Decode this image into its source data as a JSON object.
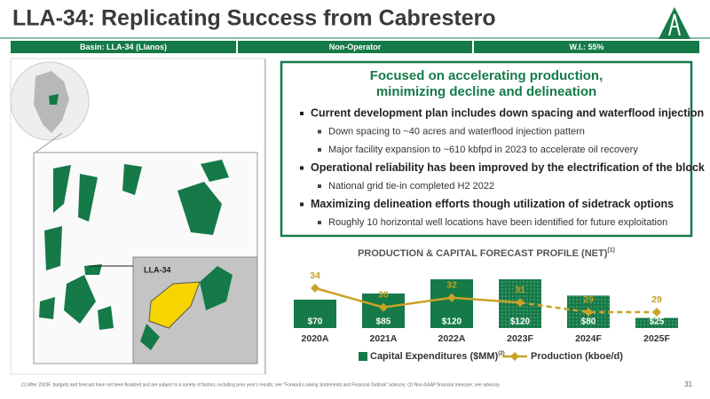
{
  "header": {
    "title": "LLA-34: Replicating Success from Cabrestero",
    "info_bar": [
      "Basin: LLA-34 (Llanos)",
      "Non-Operator",
      "W.I.: 55%"
    ]
  },
  "map": {
    "label": "LLA-34"
  },
  "focus": {
    "heading_lines": [
      "Focused on accelerating production,",
      "minimizing decline and delineation"
    ],
    "bullets": [
      {
        "level": 1,
        "text": "Current development plan includes down spacing and waterflood injection"
      },
      {
        "level": 2,
        "text": "Down spacing to ~40 acres and waterflood injection pattern"
      },
      {
        "level": 2,
        "text": "Major facility expansion to ~610 kbfpd in 2023 to accelerate oil recovery"
      },
      {
        "level": 1,
        "text": "Operational reliability has been improved by the electrification of the block"
      },
      {
        "level": 2,
        "text": "National grid tie-in completed H2 2022"
      },
      {
        "level": 1,
        "text": "Maximizing delineation efforts though utilization of sidetrack options"
      },
      {
        "level": 2,
        "text": "Roughly 10 horizontal well locations have been identified for future exploitation"
      }
    ]
  },
  "chart_data": {
    "type": "combo",
    "title": "PRODUCTION & CAPITAL FORECAST PROFILE (NET)",
    "title_note": "(1)",
    "categories": [
      "2020A",
      "2021A",
      "2022A",
      "2023F",
      "2024F",
      "2025F"
    ],
    "series": [
      {
        "name": "Capital Expenditures ($MM)",
        "name_note": "(2)",
        "type": "bar",
        "color": "#157a48",
        "values": [
          70,
          85,
          120,
          120,
          80,
          25
        ],
        "value_labels": [
          "$70",
          "$85",
          "$120",
          "$120",
          "$80",
          "$25"
        ]
      },
      {
        "name": "Production (kboe/d)",
        "type": "line",
        "color": "#c9a227",
        "values": [
          34,
          30,
          32,
          31,
          29,
          29
        ]
      }
    ]
  },
  "footer": {
    "footnote": "(1) After 2023F, budgets and forecast have not been finalized and are subject to a variety of factors, including prior year's results; see \"Forward-Looking Statements and Financial Outlook\" advisory. (2) Non-GAAP financial measure; see advisory.",
    "page": "31"
  }
}
